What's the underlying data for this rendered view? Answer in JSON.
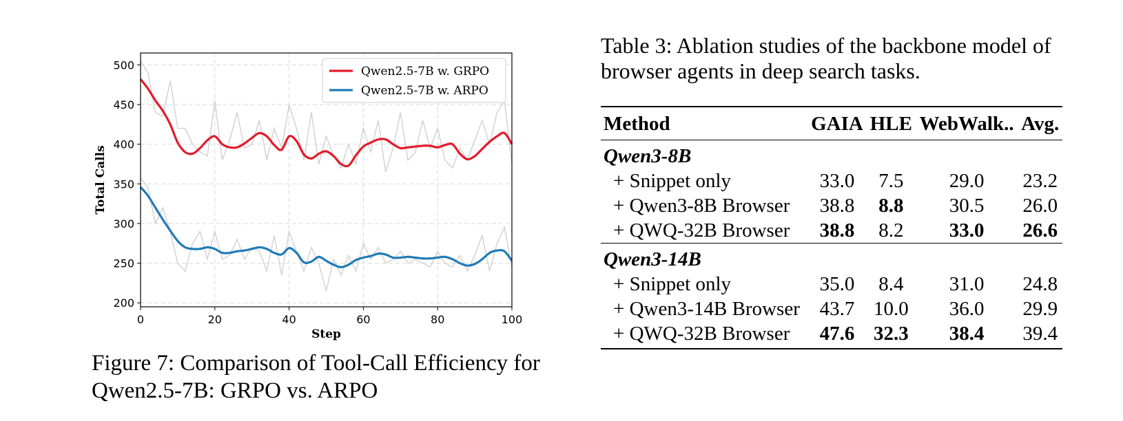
{
  "chart_data": {
    "type": "line",
    "xlabel": "Step",
    "ylabel": "Total Calls",
    "xlim": [
      0,
      100
    ],
    "ylim": [
      195,
      515
    ],
    "xticks": [
      0,
      20,
      40,
      60,
      80,
      100
    ],
    "yticks": [
      200,
      250,
      300,
      350,
      400,
      450,
      500
    ],
    "grid": true,
    "legend_position": "top-right",
    "series": [
      {
        "name": "Qwen2.5-7B w. GRPO",
        "color": "#e31a2a",
        "x": [
          0,
          2,
          4,
          6,
          8,
          10,
          12,
          14,
          16,
          18,
          20,
          22,
          24,
          26,
          28,
          30,
          32,
          34,
          36,
          38,
          40,
          42,
          44,
          46,
          48,
          50,
          52,
          54,
          56,
          58,
          60,
          62,
          64,
          66,
          68,
          70,
          72,
          74,
          76,
          78,
          80,
          82,
          84,
          86,
          88,
          90,
          92,
          94,
          96,
          98,
          100
        ],
        "smoothed": [
          482,
          470,
          455,
          442,
          425,
          402,
          390,
          388,
          395,
          405,
          410,
          400,
          396,
          396,
          401,
          408,
          414,
          410,
          399,
          393,
          410,
          404,
          387,
          382,
          388,
          391,
          385,
          375,
          373,
          386,
          397,
          402,
          406,
          406,
          400,
          395,
          396,
          397,
          398,
          398,
          396,
          399,
          400,
          388,
          381,
          385,
          394,
          403,
          410,
          414,
          400
        ],
        "raw": [
          505,
          490,
          440,
          435,
          480,
          420,
          420,
          400,
          390,
          385,
          455,
          380,
          405,
          440,
          395,
          400,
          430,
          380,
          420,
          395,
          450,
          420,
          380,
          440,
          375,
          410,
          385,
          370,
          400,
          375,
          420,
          390,
          430,
          365,
          395,
          440,
          380,
          390,
          430,
          395,
          420,
          380,
          370,
          395,
          380,
          405,
          430,
          400,
          440,
          455,
          375
        ]
      },
      {
        "name": "Qwen2.5-7B w. ARPO",
        "color": "#1f7bb6",
        "x": [
          0,
          2,
          4,
          6,
          8,
          10,
          12,
          14,
          16,
          18,
          20,
          22,
          24,
          26,
          28,
          30,
          32,
          34,
          36,
          38,
          40,
          42,
          44,
          46,
          48,
          50,
          52,
          54,
          56,
          58,
          60,
          62,
          64,
          66,
          68,
          70,
          72,
          74,
          76,
          78,
          80,
          82,
          84,
          86,
          88,
          90,
          92,
          94,
          96,
          98,
          100
        ],
        "smoothed": [
          346,
          335,
          320,
          305,
          291,
          278,
          270,
          268,
          268,
          270,
          268,
          263,
          263,
          265,
          266,
          268,
          270,
          268,
          263,
          261,
          269,
          263,
          251,
          252,
          258,
          253,
          248,
          245,
          248,
          254,
          257,
          259,
          262,
          261,
          257,
          257,
          258,
          257,
          256,
          256,
          257,
          258,
          255,
          250,
          247,
          249,
          255,
          263,
          266,
          265,
          253
        ],
        "raw": [
          358,
          345,
          300,
          320,
          290,
          250,
          240,
          275,
          290,
          255,
          290,
          255,
          260,
          280,
          255,
          270,
          265,
          240,
          285,
          235,
          290,
          265,
          240,
          270,
          250,
          215,
          255,
          235,
          260,
          240,
          275,
          255,
          270,
          250,
          255,
          265,
          250,
          255,
          250,
          245,
          265,
          250,
          245,
          260,
          240,
          260,
          285,
          240,
          275,
          295,
          245
        ]
      }
    ]
  },
  "figure": {
    "caption": "Figure 7: Comparison of Tool-Call Efficiency for Qwen2.5-7B: GRPO vs. ARPO"
  },
  "table": {
    "caption": "Table 3: Ablation studies of the backbone model of browser agents in deep search tasks.",
    "headers": [
      "Method",
      "GAIA",
      "HLE",
      "WebWalk..",
      "Avg."
    ],
    "groups": [
      {
        "name": "Qwen3-8B",
        "rows": [
          {
            "method": "+ Snippet only",
            "values": [
              "33.0",
              "7.5",
              "29.0",
              "23.2"
            ]
          },
          {
            "method": "+ Qwen3-8B Browser",
            "values": [
              "38.8",
              "8.8",
              "30.5",
              "26.0"
            ]
          },
          {
            "method": "+ QWQ-32B Browser",
            "values": [
              "38.8",
              "8.2",
              "33.0",
              "26.6"
            ]
          }
        ]
      },
      {
        "name": "Qwen3-14B",
        "rows": [
          {
            "method": "+ Snippet only",
            "values": [
              "35.0",
              "8.4",
              "31.0",
              "24.8"
            ]
          },
          {
            "method": "+ Qwen3-14B Browser",
            "values": [
              "43.7",
              "10.0",
              "36.0",
              "29.9"
            ]
          },
          {
            "method": "+ QWQ-32B Browser",
            "values": [
              "47.6",
              "32.3",
              "38.4",
              "39.4"
            ]
          }
        ]
      }
    ]
  }
}
